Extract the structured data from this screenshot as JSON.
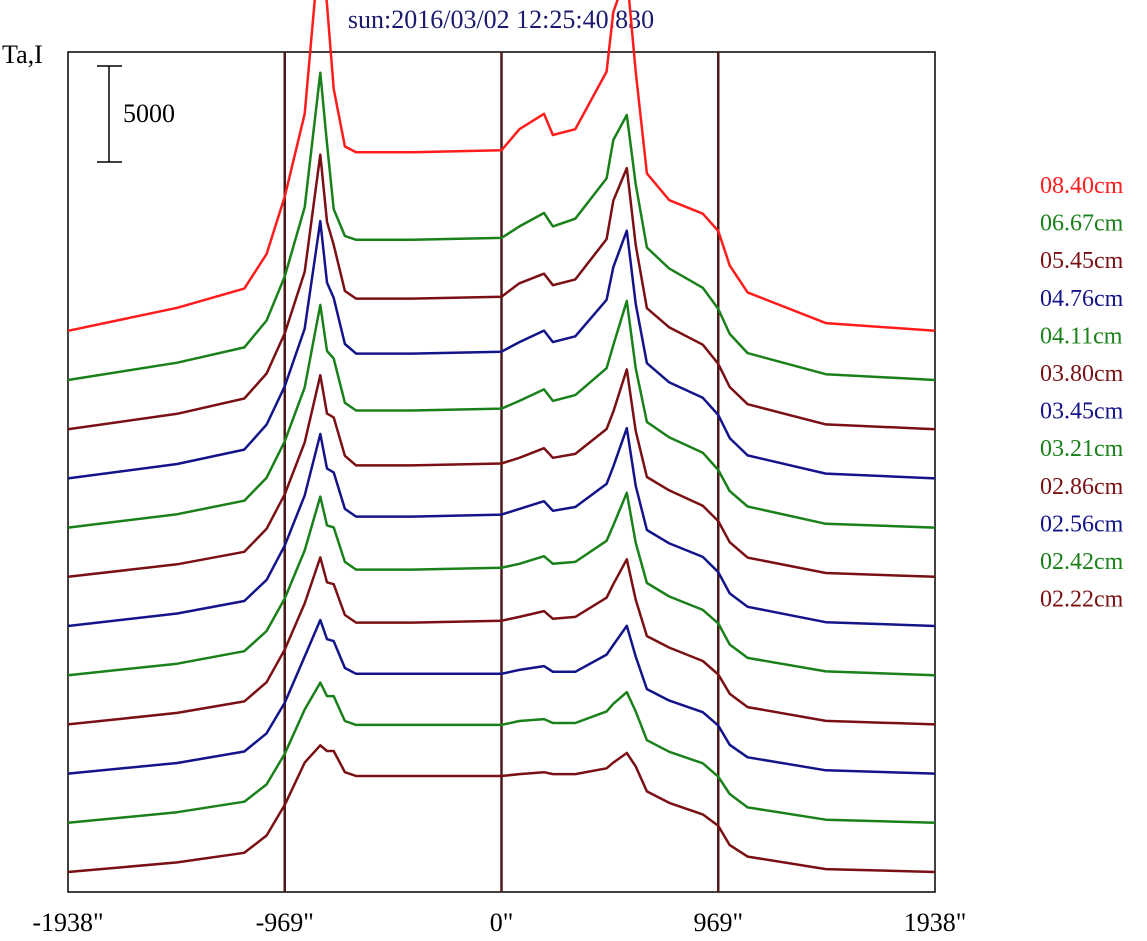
{
  "chart_data": {
    "type": "line",
    "title": "sun:2016/03/02 12:25:40.830",
    "ylabel": "Ta,I",
    "scale_bar_label": "5000",
    "scale_bar_value": 5000,
    "xlim": [
      -1938,
      1938
    ],
    "x_tick_labels": [
      "-1938\"",
      "-969\"",
      "0\"",
      "969\"",
      "1938\""
    ],
    "x_ticks": [
      -1938,
      -969,
      0,
      969,
      1938
    ],
    "vertical_lines": [
      -969,
      0,
      969
    ],
    "grid": false,
    "legend_position": "right",
    "profile_nodes": [
      -1938,
      -1450,
      -1150,
      -1050,
      -969,
      -880,
      -810,
      -780,
      -750,
      -700,
      -650,
      -600,
      -400,
      0,
      80,
      190,
      230,
      330,
      470,
      500,
      560,
      600,
      650,
      750,
      900,
      969,
      1020,
      1100,
      1450,
      1938
    ],
    "series": [
      {
        "name": "08.40cm",
        "color": "#ff1c1c",
        "values": [
          0,
          1200,
          2200,
          4000,
          7000,
          11300,
          20500,
          17000,
          12600,
          9600,
          9300,
          9300,
          9300,
          9400,
          10500,
          11300,
          10200,
          10500,
          13500,
          16600,
          18600,
          13500,
          8200,
          6800,
          6100,
          5200,
          3400,
          2000,
          400,
          0
        ]
      },
      {
        "name": "06.67cm",
        "color": "#1a801a",
        "values": [
          0,
          900,
          1700,
          3100,
          5400,
          9000,
          16000,
          12300,
          8900,
          7500,
          7300,
          7300,
          7300,
          7400,
          8000,
          8700,
          8000,
          8400,
          10500,
          12500,
          13800,
          10200,
          6900,
          5800,
          4800,
          3700,
          2400,
          1400,
          300,
          0
        ]
      },
      {
        "name": "05.45cm",
        "color": "#7a1014",
        "values": [
          0,
          800,
          1600,
          2900,
          5000,
          8200,
          14300,
          10800,
          9600,
          7200,
          6800,
          6800,
          6800,
          6900,
          7600,
          8100,
          7500,
          7800,
          9900,
          11900,
          13600,
          9600,
          6300,
          5300,
          4400,
          3400,
          2200,
          1300,
          250,
          0
        ]
      },
      {
        "name": "04.76cm",
        "color": "#14148a",
        "values": [
          0,
          750,
          1500,
          2800,
          4800,
          7800,
          13400,
          10200,
          9400,
          7000,
          6500,
          6500,
          6500,
          6600,
          7100,
          7700,
          7100,
          7400,
          9300,
          11000,
          12900,
          9100,
          6000,
          5000,
          4200,
          3300,
          2100,
          1200,
          250,
          0
        ]
      },
      {
        "name": "04.11cm",
        "color": "#1a801a",
        "values": [
          0,
          700,
          1400,
          2600,
          4500,
          7300,
          11600,
          9200,
          8800,
          6500,
          6100,
          6100,
          6100,
          6200,
          6600,
          7200,
          6600,
          6900,
          8300,
          9500,
          11800,
          8300,
          5500,
          4700,
          3900,
          3000,
          1900,
          1100,
          200,
          0
        ]
      },
      {
        "name": "03.80cm",
        "color": "#7a1014",
        "values": [
          0,
          650,
          1300,
          2500,
          4300,
          7000,
          10500,
          8500,
          8300,
          6300,
          5800,
          5800,
          5800,
          5900,
          6200,
          6700,
          6200,
          6400,
          7700,
          8600,
          10800,
          7600,
          5200,
          4500,
          3700,
          2900,
          1800,
          1000,
          200,
          0
        ]
      },
      {
        "name": "03.45cm",
        "color": "#14148a",
        "values": [
          0,
          650,
          1300,
          2400,
          4200,
          6800,
          10000,
          8200,
          8000,
          6100,
          5700,
          5700,
          5700,
          5800,
          6100,
          6500,
          6000,
          6200,
          7400,
          8300,
          10300,
          7300,
          5000,
          4300,
          3600,
          2800,
          1700,
          1000,
          200,
          0
        ]
      },
      {
        "name": "03.21cm",
        "color": "#1a801a",
        "values": [
          0,
          600,
          1250,
          2300,
          4000,
          6500,
          9300,
          7800,
          7700,
          5900,
          5500,
          5500,
          5500,
          5600,
          5800,
          6200,
          5800,
          5900,
          7000,
          7800,
          9500,
          6900,
          4800,
          4100,
          3400,
          2700,
          1600,
          900,
          200,
          0
        ]
      },
      {
        "name": "02.86cm",
        "color": "#7a1014",
        "values": [
          0,
          600,
          1200,
          2200,
          3900,
          6300,
          8700,
          7400,
          7300,
          5700,
          5300,
          5300,
          5300,
          5400,
          5600,
          5900,
          5500,
          5600,
          6600,
          7300,
          8600,
          6500,
          4600,
          4000,
          3300,
          2600,
          1600,
          900,
          180,
          0
        ]
      },
      {
        "name": "02.56cm",
        "color": "#14148a",
        "values": [
          0,
          550,
          1150,
          2100,
          3700,
          6100,
          8000,
          7000,
          6900,
          5500,
          5200,
          5200,
          5200,
          5200,
          5400,
          5600,
          5300,
          5300,
          6200,
          6700,
          7700,
          6100,
          4400,
          3800,
          3200,
          2500,
          1500,
          850,
          170,
          0
        ]
      },
      {
        "name": "02.42cm",
        "color": "#1a801a",
        "values": [
          0,
          550,
          1100,
          2000,
          3600,
          5900,
          7300,
          6600,
          6600,
          5300,
          5100,
          5100,
          5100,
          5100,
          5300,
          5400,
          5200,
          5200,
          5800,
          6200,
          6800,
          5800,
          4300,
          3700,
          3100,
          2400,
          1500,
          800,
          160,
          0
        ]
      },
      {
        "name": "02.22cm",
        "color": "#7a1014",
        "values": [
          0,
          500,
          1000,
          1900,
          3500,
          5700,
          6600,
          6300,
          6300,
          5200,
          5000,
          5000,
          5000,
          5000,
          5100,
          5200,
          5100,
          5100,
          5400,
          5700,
          6200,
          5500,
          4200,
          3600,
          3000,
          2400,
          1400,
          800,
          150,
          0
        ]
      }
    ]
  }
}
